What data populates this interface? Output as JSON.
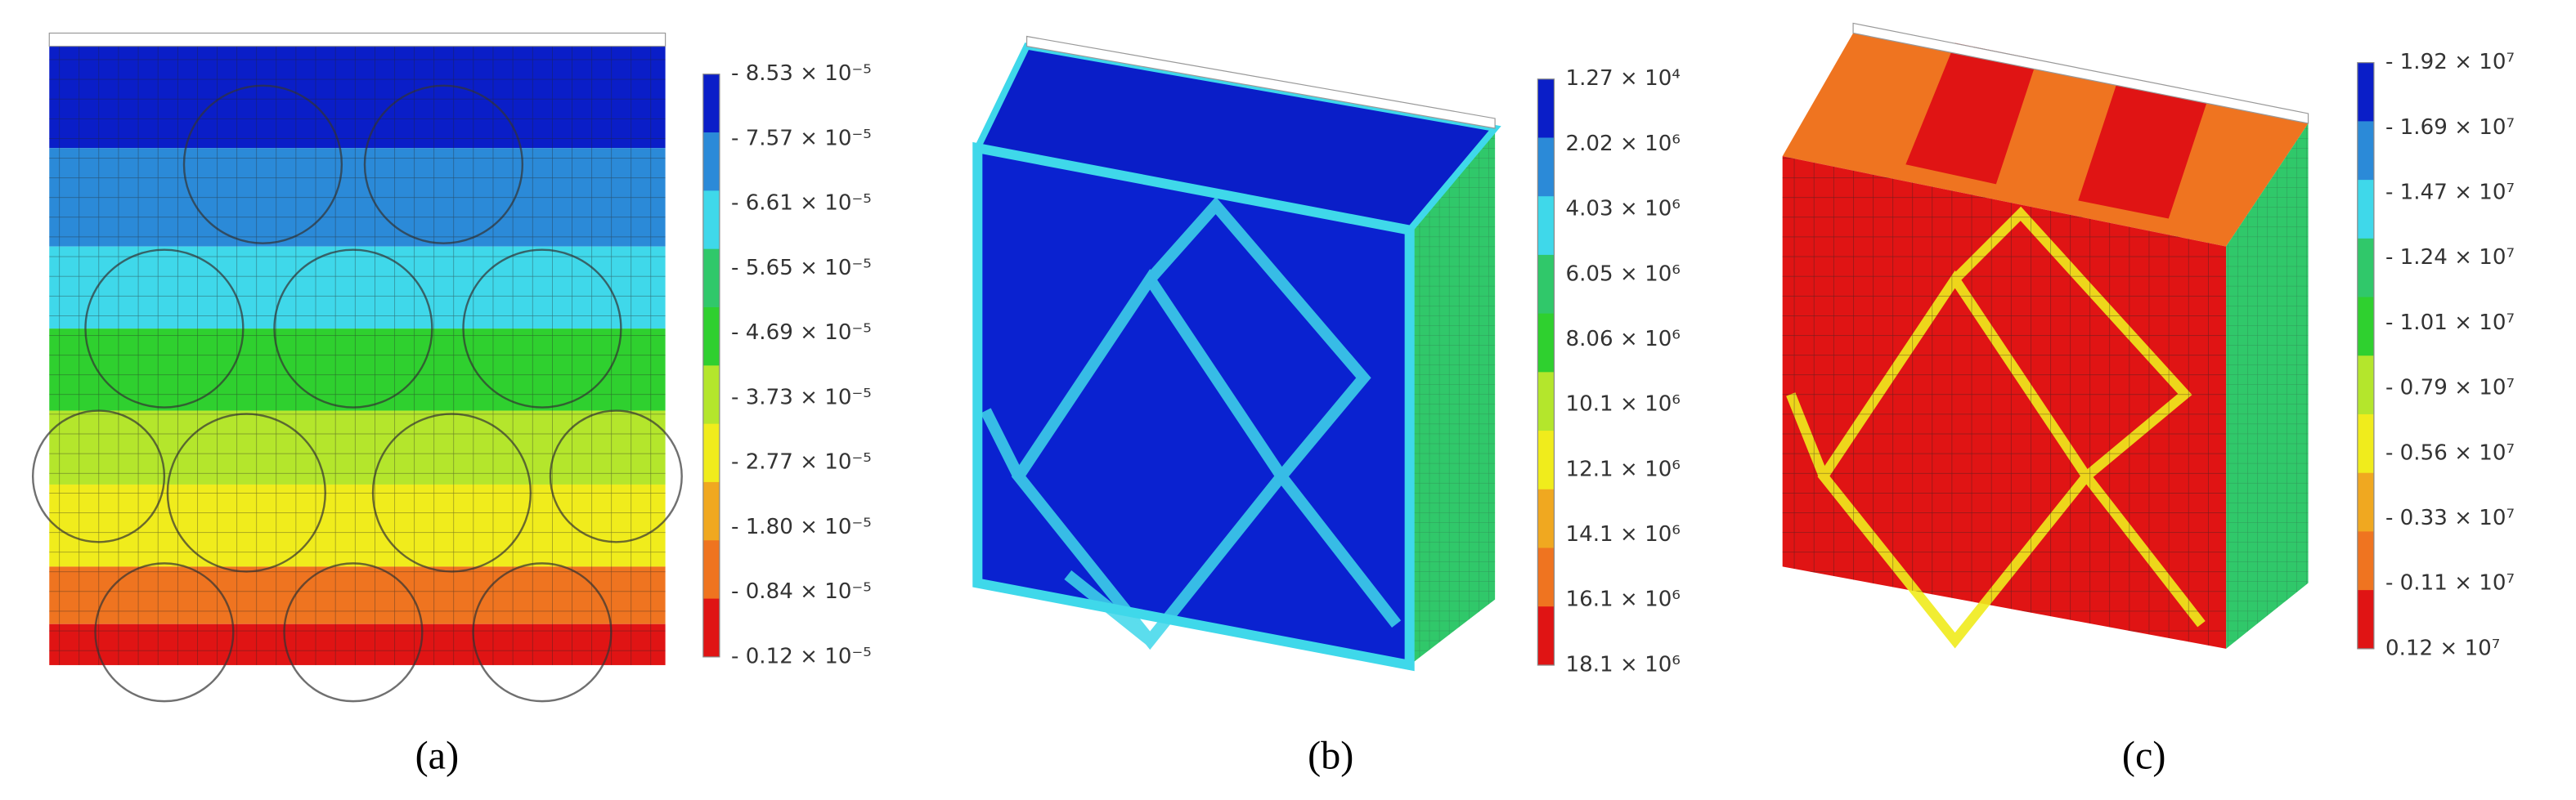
{
  "legend_colors": [
    "#0a1ec8",
    "#2b8ad8",
    "#3fd8ea",
    "#30c86a",
    "#2fd02f",
    "#b4e62c",
    "#f0ec1c",
    "#f0a820",
    "#ef7420",
    "#e01414"
  ],
  "panels": [
    {
      "label": "(a)",
      "legend": [
        "- 8.53 × 10⁻⁵",
        "- 7.57 × 10⁻⁵",
        "- 6.61 × 10⁻⁵",
        "- 5.65 × 10⁻⁵",
        "- 4.69 × 10⁻⁵",
        "- 3.73 × 10⁻⁵",
        "- 2.77 × 10⁻⁵",
        "- 1.80 × 10⁻⁵",
        "- 0.84 × 10⁻⁵",
        "- 0.12 × 10⁻⁵"
      ]
    },
    {
      "label": "(b)",
      "legend": [
        "1.27 × 10⁴",
        "2.02 × 10⁶",
        "4.03 × 10⁶",
        "6.05 × 10⁶",
        "8.06 × 10⁶",
        "10.1 × 10⁶",
        "12.1 × 10⁶",
        "14.1 × 10⁶",
        "16.1 × 10⁶",
        "18.1 × 10⁶"
      ]
    },
    {
      "label": "(c)",
      "legend": [
        "- 1.92 × 10⁷",
        "- 1.69 × 10⁷",
        "- 1.47 × 10⁷",
        "- 1.24 × 10⁷",
        "- 1.01 × 10⁷",
        "- 0.79 × 10⁷",
        "- 0.56 × 10⁷",
        "- 0.33 × 10⁷",
        "- 0.11 × 10⁷",
        "0.12 × 10⁷"
      ]
    }
  ]
}
